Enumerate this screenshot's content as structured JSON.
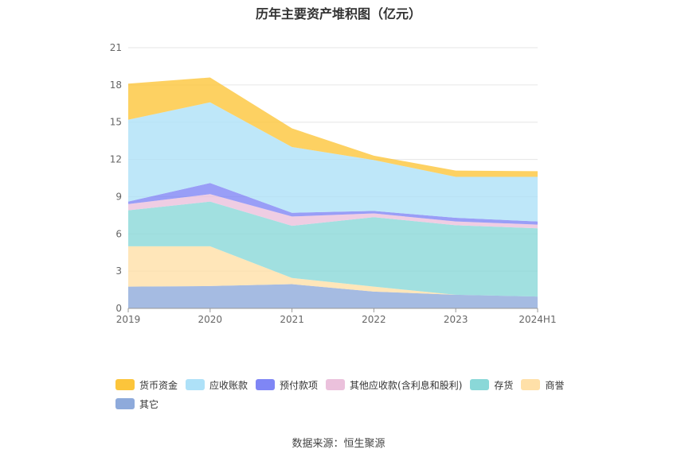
{
  "chart_data": {
    "type": "area",
    "stacked": true,
    "title": "历年主要资产堆积图（亿元）",
    "categories": [
      "2019",
      "2020",
      "2021",
      "2022",
      "2023",
      "2024H1"
    ],
    "ylim": [
      0,
      21
    ],
    "yticks": [
      0,
      3,
      6,
      9,
      12,
      15,
      18,
      21
    ],
    "grid": true,
    "legend_position": "bottom-left",
    "series": [
      {
        "name": "其它",
        "color": "#8eaadb",
        "values": [
          1.75,
          1.8,
          1.95,
          1.35,
          1.1,
          0.95
        ]
      },
      {
        "name": "商誉",
        "color": "#ffe0a8",
        "values": [
          3.25,
          3.2,
          0.5,
          0.4,
          0.0,
          0.0
        ]
      },
      {
        "name": "存货",
        "color": "#8ad8d8",
        "values": [
          2.9,
          3.6,
          4.2,
          5.6,
          5.6,
          5.5
        ]
      },
      {
        "name": "其他应收款(含利息和股利)",
        "color": "#ebc1dc",
        "values": [
          0.5,
          0.6,
          0.75,
          0.3,
          0.3,
          0.3
        ]
      },
      {
        "name": "预付款项",
        "color": "#7f86f5",
        "values": [
          0.2,
          0.9,
          0.3,
          0.2,
          0.3,
          0.25
        ]
      },
      {
        "name": "应收账款",
        "color": "#aee1f8",
        "values": [
          6.6,
          6.5,
          5.3,
          4.1,
          3.3,
          3.6
        ]
      },
      {
        "name": "货币资金",
        "color": "#fcc53b",
        "values": [
          2.9,
          2.0,
          1.5,
          0.35,
          0.5,
          0.45
        ]
      }
    ],
    "legend_order": [
      "货币资金",
      "应收账款",
      "预付款项",
      "其他应收款(含利息和股利)",
      "存货",
      "商誉",
      "其它"
    ]
  },
  "source_text": "数据来源：恒生聚源"
}
